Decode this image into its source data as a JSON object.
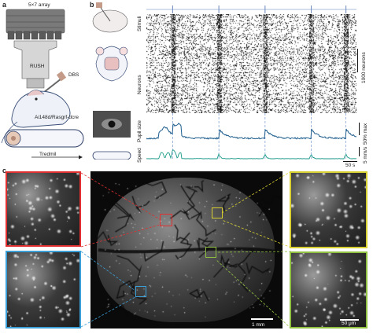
{
  "panels": {
    "a": {
      "letter": "a",
      "array_label": "5×7 array",
      "rush_label": "RUSH",
      "dbs_label": "DBS",
      "mouse_label": "Ai148d/Rasgrf-dcre",
      "treadmill_label": "Tredmil"
    },
    "b": {
      "letter": "b",
      "stimuli_label": "Stimuli",
      "neurons_label": "Neurons",
      "neurons_scale": "1000 neurons",
      "pupil_label": "Pupil size",
      "pupil_scale": "50% max",
      "speed_label": "Speed",
      "speed_scale": "5 mm/s",
      "time_scale": "50 s",
      "stimulus_times": [
        0.125,
        0.345,
        0.565,
        0.785,
        0.95
      ]
    },
    "c": {
      "letter": "c",
      "center_scale": "1 mm",
      "inset_scale": "50 μm",
      "colors": {
        "red": "#e03030",
        "yellow": "#d8d030",
        "blue": "#3ca0d8",
        "green": "#90c040"
      }
    }
  }
}
